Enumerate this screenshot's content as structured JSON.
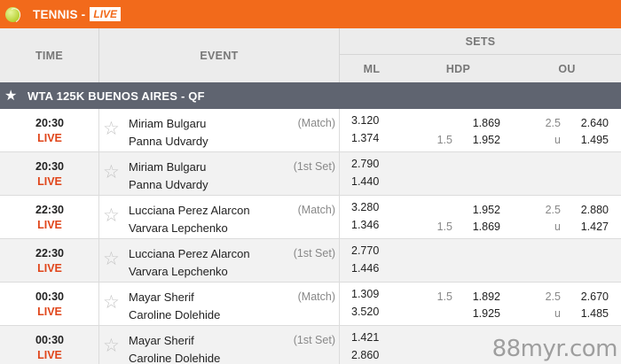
{
  "header": {
    "sport": "TENNIS -",
    "live_badge": "LIVE"
  },
  "columns": {
    "time": "TIME",
    "event": "EVENT",
    "sets": "SETS",
    "ml": "ML",
    "hdp": "HDP",
    "ou": "OU"
  },
  "tournament": {
    "name": "WTA 125K BUENOS AIRES - QF"
  },
  "rows": [
    {
      "time": "20:30",
      "status": "LIVE",
      "p1": "Miriam Bulgaru",
      "p2": "Panna Udvardy",
      "type": "(Match)",
      "ml1": "3.120",
      "ml2": "1.374",
      "hdp_line1": "",
      "hdp_line2": "1.5",
      "hdp1": "1.869",
      "hdp2": "1.952",
      "ou_line": "2.5",
      "ou_u": "u",
      "ou1": "2.640",
      "ou2": "1.495"
    },
    {
      "time": "20:30",
      "status": "LIVE",
      "p1": "Miriam Bulgaru",
      "p2": "Panna Udvardy",
      "type": "(1st Set)",
      "ml1": "2.790",
      "ml2": "1.440",
      "hdp_line1": "",
      "hdp_line2": "",
      "hdp1": "",
      "hdp2": "",
      "ou_line": "",
      "ou_u": "",
      "ou1": "",
      "ou2": ""
    },
    {
      "time": "22:30",
      "status": "LIVE",
      "p1": "Lucciana Perez Alarcon",
      "p2": "Varvara Lepchenko",
      "type": "(Match)",
      "ml1": "3.280",
      "ml2": "1.346",
      "hdp_line1": "",
      "hdp_line2": "1.5",
      "hdp1": "1.952",
      "hdp2": "1.869",
      "ou_line": "2.5",
      "ou_u": "u",
      "ou1": "2.880",
      "ou2": "1.427"
    },
    {
      "time": "22:30",
      "status": "LIVE",
      "p1": "Lucciana Perez Alarcon",
      "p2": "Varvara Lepchenko",
      "type": "(1st Set)",
      "ml1": "2.770",
      "ml2": "1.446",
      "hdp_line1": "",
      "hdp_line2": "",
      "hdp1": "",
      "hdp2": "",
      "ou_line": "",
      "ou_u": "",
      "ou1": "",
      "ou2": ""
    },
    {
      "time": "00:30",
      "status": "LIVE",
      "p1": "Mayar Sherif",
      "p2": "Caroline Dolehide",
      "type": "(Match)",
      "ml1": "1.309",
      "ml2": "3.520",
      "hdp_line1": "1.5",
      "hdp_line2": "",
      "hdp1": "1.892",
      "hdp2": "1.925",
      "ou_line": "2.5",
      "ou_u": "u",
      "ou1": "2.670",
      "ou2": "1.485"
    },
    {
      "time": "00:30",
      "status": "LIVE",
      "p1": "Mayar Sherif",
      "p2": "Caroline Dolehide",
      "type": "(1st Set)",
      "ml1": "1.421",
      "ml2": "2.860",
      "hdp_line1": "",
      "hdp_line2": "",
      "hdp1": "",
      "hdp2": "",
      "ou_line": "",
      "ou_u": "",
      "ou1": "",
      "ou2": ""
    }
  ],
  "watermark": "88myr.com",
  "icons": {
    "sport": "tennis-ball-icon",
    "tournament_favorite": "star-icon",
    "row_favorite": "star-outline-icon"
  },
  "colors": {
    "brand": "#f26a1b",
    "live": "#e0451a",
    "tournament_bar": "#5f6470"
  }
}
